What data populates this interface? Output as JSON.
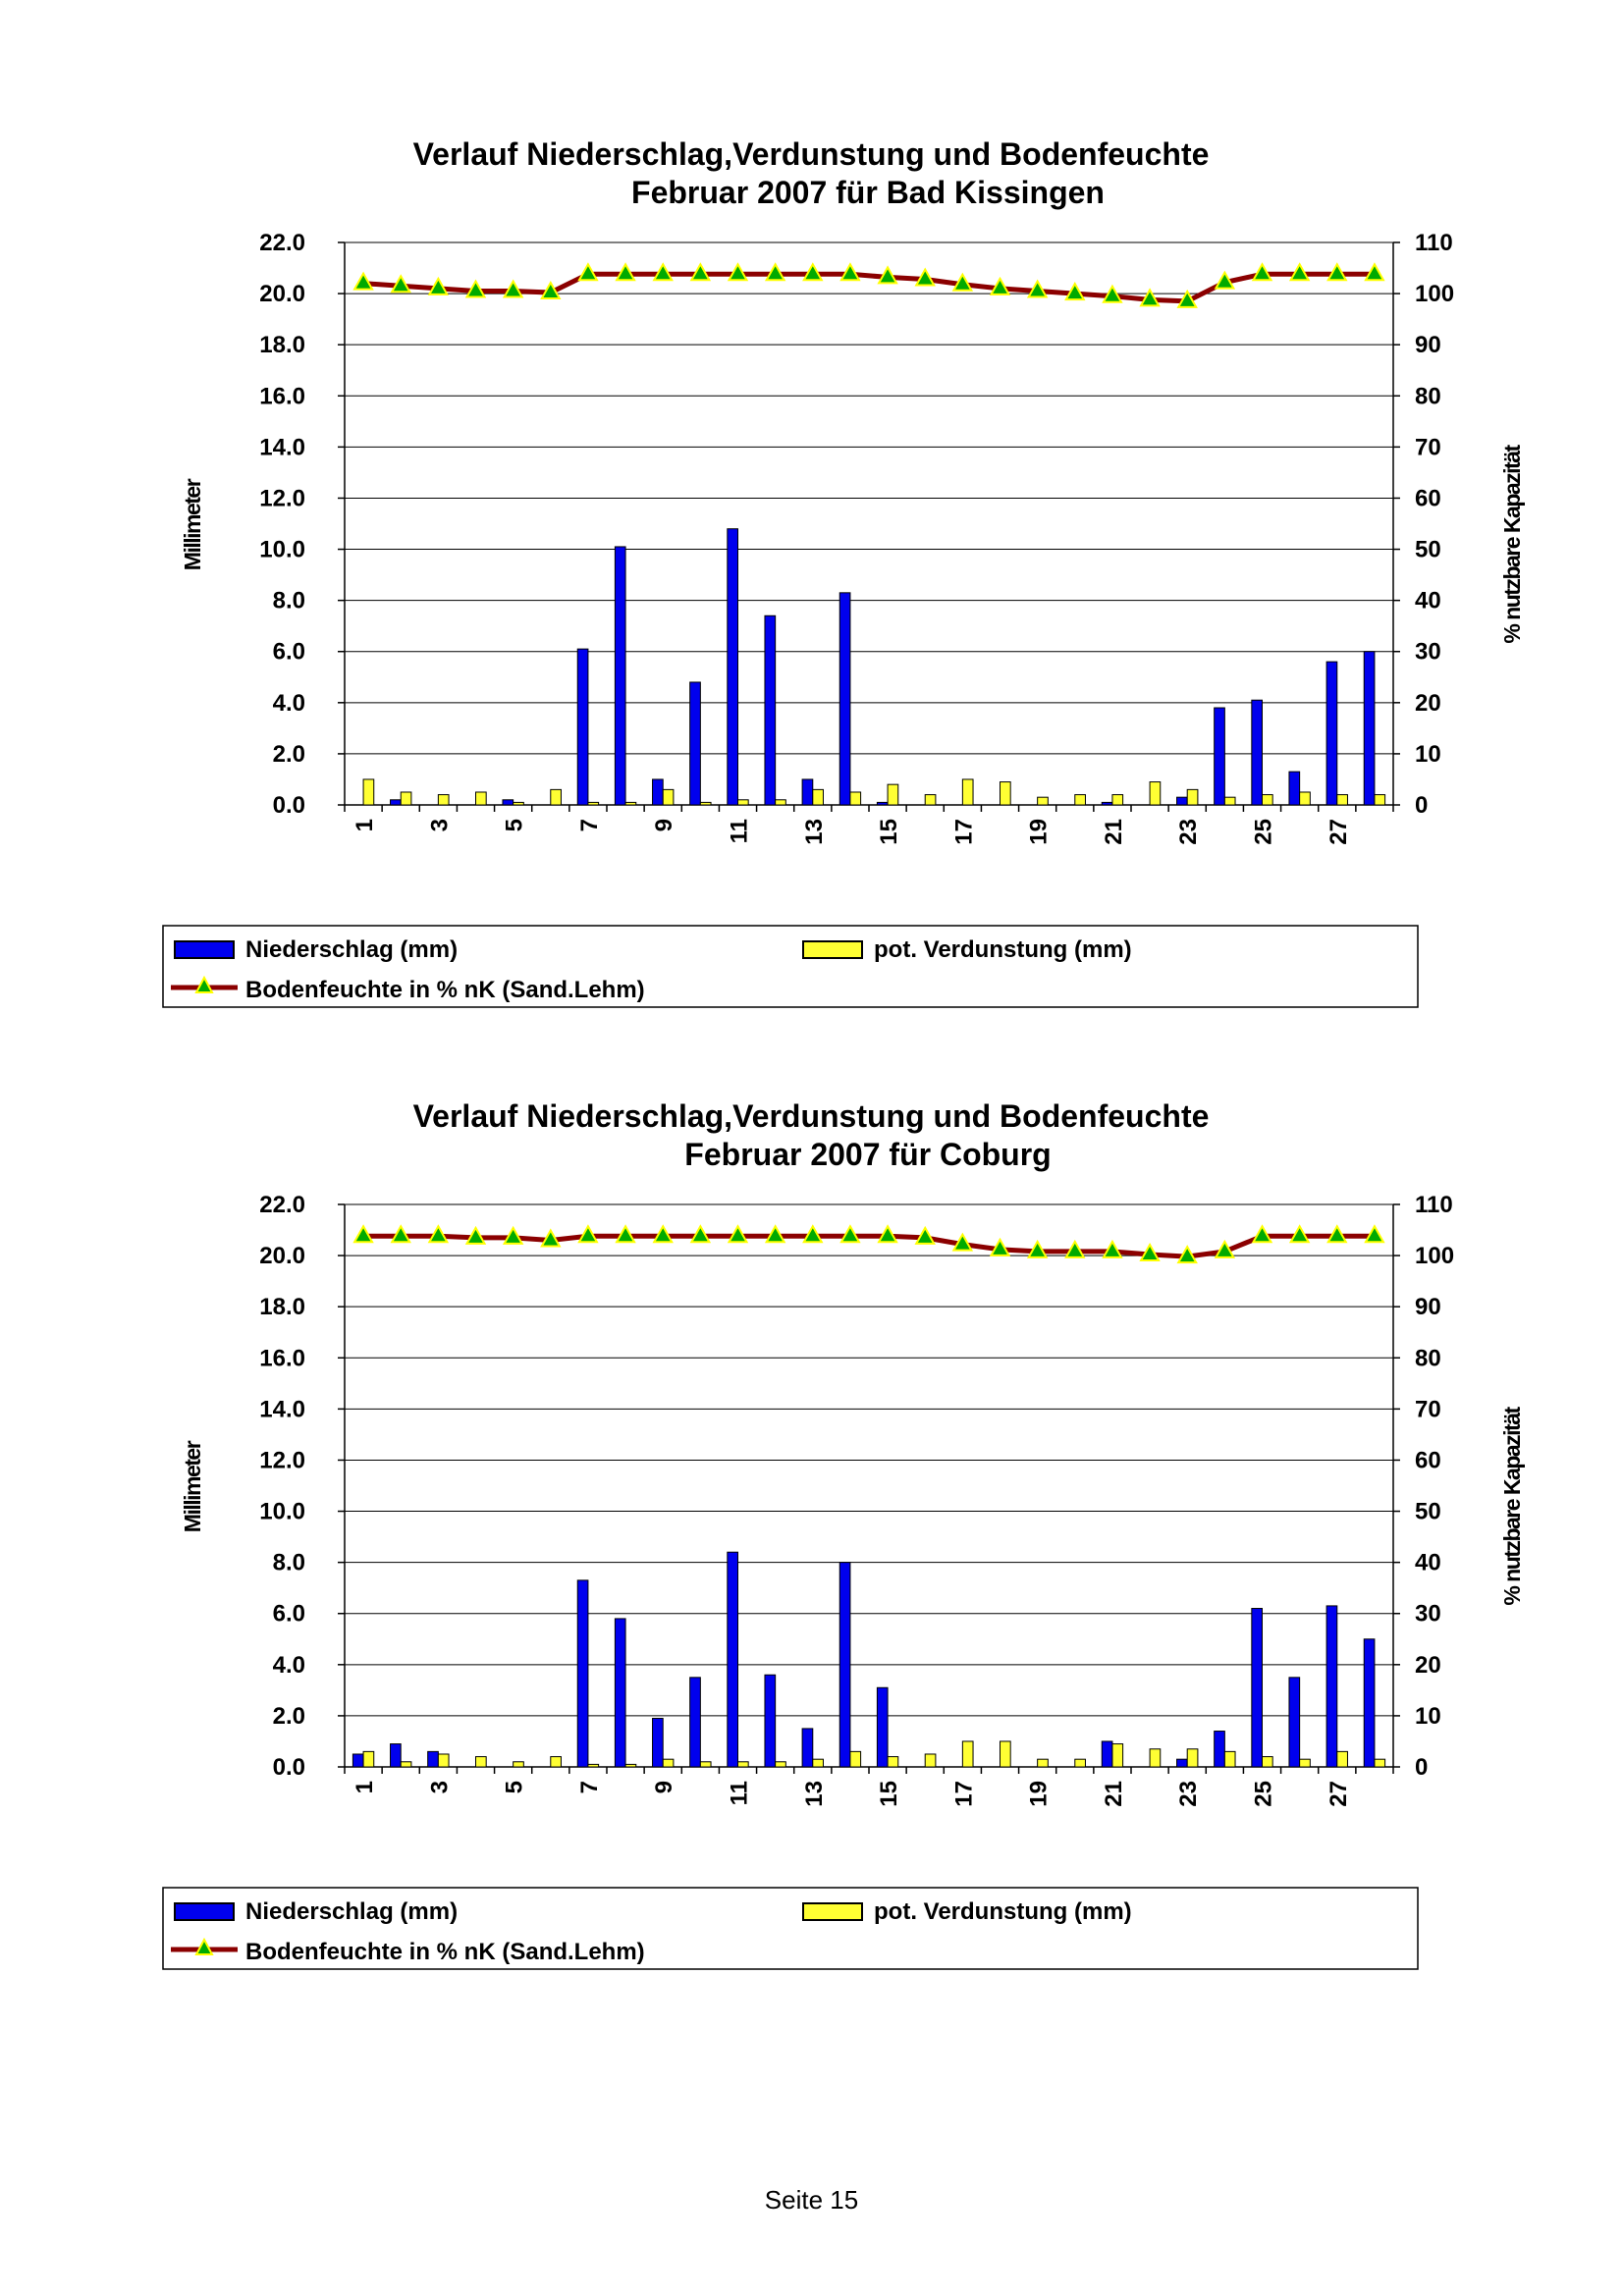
{
  "page": {
    "footer": "Seite 15"
  },
  "chart_data": [
    {
      "type": "bar",
      "title_line1": "Verlauf Niederschlag,Verdunstung und Bodenfeuchte",
      "title_line2": "Februar  2007 für Bad Kissingen",
      "ylabel": "Millimeter",
      "y2label": "% nutzbare Kapazität",
      "ylim": [
        0,
        22
      ],
      "y2lim": [
        0,
        110
      ],
      "y_ticks": [
        "0.0",
        "2.0",
        "4.0",
        "6.0",
        "8.0",
        "10.0",
        "12.0",
        "14.0",
        "16.0",
        "18.0",
        "20.0",
        "22.0"
      ],
      "y2_ticks": [
        "0",
        "10",
        "20",
        "30",
        "40",
        "50",
        "60",
        "70",
        "80",
        "90",
        "100",
        "110"
      ],
      "x_ticks": [
        "1",
        "3",
        "5",
        "7",
        "9",
        "11",
        "13",
        "15",
        "17",
        "19",
        "21",
        "23",
        "25",
        "27"
      ],
      "days": [
        1,
        2,
        3,
        4,
        5,
        6,
        7,
        8,
        9,
        10,
        11,
        12,
        13,
        14,
        15,
        16,
        17,
        18,
        19,
        20,
        21,
        22,
        23,
        24,
        25,
        26,
        27,
        28
      ],
      "series": [
        {
          "name": "Niederschlag (mm)",
          "kind": "bar",
          "color": "#0000ee",
          "values": [
            0,
            0.2,
            0,
            0,
            0.2,
            0,
            6.1,
            10.1,
            1.0,
            4.8,
            10.8,
            7.4,
            1.0,
            8.3,
            0.1,
            0,
            0,
            0,
            0,
            0,
            0.1,
            0,
            0.3,
            3.8,
            4.1,
            1.3,
            5.6,
            6.0
          ]
        },
        {
          "name": "pot. Verdunstung (mm)",
          "kind": "bar",
          "color": "#ffff33",
          "values": [
            1.0,
            0.5,
            0.4,
            0.5,
            0.1,
            0.6,
            0.1,
            0.1,
            0.6,
            0.1,
            0.2,
            0.2,
            0.6,
            0.5,
            0.8,
            0.4,
            1.0,
            0.9,
            0.3,
            0.4,
            0.4,
            0.9,
            0.6,
            0.3,
            0.4,
            0.5,
            0.4,
            0.4
          ]
        },
        {
          "name": "Bodenfeuchte in % nK (Sand.Lehm)",
          "kind": "line",
          "axis": "right",
          "color": "#8b0000",
          "marker_color": "#00aa00",
          "values": [
            102,
            101.5,
            101,
            100.5,
            100.5,
            100.2,
            103.8,
            103.8,
            103.8,
            103.8,
            103.8,
            103.8,
            103.8,
            103.8,
            103.2,
            102.8,
            101.8,
            101,
            100.5,
            100,
            99.5,
            98.8,
            98.5,
            102.2,
            103.8,
            103.8,
            103.8,
            103.8
          ]
        }
      ],
      "legend": {
        "entry1": "Niederschlag (mm)",
        "entry2": "pot. Verdunstung (mm)",
        "entry3": "Bodenfeuchte in % nK (Sand.Lehm)"
      }
    },
    {
      "type": "bar",
      "title_line1": "Verlauf Niederschlag,Verdunstung und Bodenfeuchte",
      "title_line2": "Februar 2007 für Coburg",
      "ylabel": "Millimeter",
      "y2label": "% nutzbare Kapazität",
      "ylim": [
        0,
        22
      ],
      "y2lim": [
        0,
        110
      ],
      "y_ticks": [
        "0.0",
        "2.0",
        "4.0",
        "6.0",
        "8.0",
        "10.0",
        "12.0",
        "14.0",
        "16.0",
        "18.0",
        "20.0",
        "22.0"
      ],
      "y2_ticks": [
        "0",
        "10",
        "20",
        "30",
        "40",
        "50",
        "60",
        "70",
        "80",
        "90",
        "100",
        "110"
      ],
      "x_ticks": [
        "1",
        "3",
        "5",
        "7",
        "9",
        "11",
        "13",
        "15",
        "17",
        "19",
        "21",
        "23",
        "25",
        "27"
      ],
      "days": [
        1,
        2,
        3,
        4,
        5,
        6,
        7,
        8,
        9,
        10,
        11,
        12,
        13,
        14,
        15,
        16,
        17,
        18,
        19,
        20,
        21,
        22,
        23,
        24,
        25,
        26,
        27,
        28
      ],
      "series": [
        {
          "name": "Niederschlag (mm)",
          "kind": "bar",
          "color": "#0000ee",
          "values": [
            0.5,
            0.9,
            0.6,
            0,
            0,
            0,
            7.3,
            5.8,
            1.9,
            3.5,
            8.4,
            3.6,
            1.5,
            8.0,
            3.1,
            0,
            0,
            0,
            0,
            0,
            1.0,
            0,
            0.3,
            1.4,
            6.2,
            3.5,
            6.3,
            5.0
          ]
        },
        {
          "name": "pot. Verdunstung (mm)",
          "kind": "bar",
          "color": "#ffff33",
          "values": [
            0.6,
            0.2,
            0.5,
            0.4,
            0.2,
            0.4,
            0.1,
            0.1,
            0.3,
            0.2,
            0.2,
            0.2,
            0.3,
            0.6,
            0.4,
            0.5,
            1.0,
            1.0,
            0.3,
            0.3,
            0.9,
            0.7,
            0.7,
            0.6,
            0.4,
            0.3,
            0.6,
            0.3
          ]
        },
        {
          "name": "Bodenfeuchte in % nK (Sand.Lehm)",
          "kind": "line",
          "axis": "right",
          "color": "#8b0000",
          "marker_color": "#00aa00",
          "values": [
            103.8,
            103.8,
            103.8,
            103.5,
            103.5,
            103,
            103.8,
            103.8,
            103.8,
            103.8,
            103.8,
            103.8,
            103.8,
            103.8,
            103.8,
            103.5,
            102.2,
            101.2,
            100.8,
            100.8,
            100.8,
            100.2,
            99.8,
            100.8,
            103.8,
            103.8,
            103.8,
            103.8
          ]
        }
      ],
      "legend": {
        "entry1": "Niederschlag (mm)",
        "entry2": "pot. Verdunstung (mm)",
        "entry3": "Bodenfeuchte in % nK (Sand.Lehm)"
      }
    }
  ]
}
